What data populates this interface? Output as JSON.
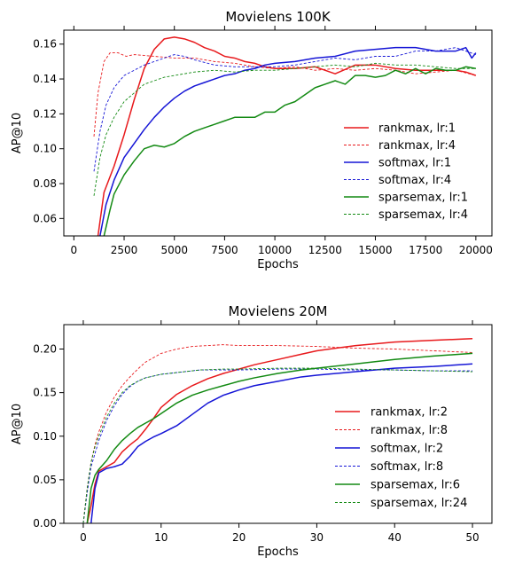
{
  "chart_data": [
    {
      "type": "line",
      "title": "Movielens 100K",
      "xlabel": "Epochs",
      "ylabel": "AP@10",
      "xlim": [
        -500,
        20800
      ],
      "ylim": [
        0.05,
        0.168
      ],
      "xticks": [
        0,
        2500,
        5000,
        7500,
        10000,
        12500,
        15000,
        17500,
        20000
      ],
      "xtick_labels": [
        "0",
        "2500",
        "5000",
        "7500",
        "10000",
        "12500",
        "15000",
        "17500",
        "20000"
      ],
      "yticks": [
        0.06,
        0.08,
        0.1,
        0.12,
        0.14,
        0.16
      ],
      "ytick_labels": [
        "0.06",
        "0.08",
        "0.10",
        "0.12",
        "0.14",
        "0.16"
      ],
      "grid": false,
      "legend_position": "right",
      "series": [
        {
          "name": "rankmax, lr:1",
          "color": "#e8191c",
          "style": "solid",
          "x": [
            1200,
            1500,
            2000,
            2500,
            3000,
            3500,
            4000,
            4500,
            5000,
            5500,
            6000,
            6500,
            7000,
            7500,
            8000,
            8500,
            9000,
            9500,
            10000,
            11000,
            12000,
            13000,
            14000,
            15000,
            16000,
            17000,
            18000,
            19000,
            19500,
            20000
          ],
          "y": [
            0.05,
            0.075,
            0.09,
            0.108,
            0.128,
            0.146,
            0.157,
            0.163,
            0.164,
            0.163,
            0.161,
            0.158,
            0.156,
            0.153,
            0.152,
            0.15,
            0.149,
            0.147,
            0.146,
            0.146,
            0.147,
            0.143,
            0.148,
            0.148,
            0.146,
            0.145,
            0.145,
            0.145,
            0.144,
            0.142
          ]
        },
        {
          "name": "rankmax, lr:4",
          "color": "#e8191c",
          "style": "dashed",
          "x": [
            1000,
            1200,
            1500,
            1800,
            2200,
            2600,
            3000,
            4000,
            5000,
            6000,
            7000,
            8000,
            9000,
            10000,
            11000,
            12000,
            13000,
            14000,
            15000,
            16000,
            17000,
            18000,
            19000,
            20000
          ],
          "y": [
            0.107,
            0.132,
            0.15,
            0.155,
            0.155,
            0.153,
            0.154,
            0.153,
            0.152,
            0.152,
            0.15,
            0.149,
            0.147,
            0.146,
            0.147,
            0.145,
            0.146,
            0.145,
            0.146,
            0.145,
            0.143,
            0.144,
            0.145,
            0.142
          ]
        },
        {
          "name": "softmax, lr:1",
          "color": "#1515d6",
          "style": "solid",
          "x": [
            1300,
            1600,
            2000,
            2500,
            3000,
            3500,
            4000,
            4500,
            5000,
            5500,
            6000,
            6500,
            7000,
            7500,
            8000,
            8500,
            9000,
            9500,
            10000,
            11000,
            12000,
            13000,
            14000,
            15000,
            16000,
            17000,
            18000,
            19000,
            19500,
            19800,
            20000
          ],
          "y": [
            0.05,
            0.068,
            0.082,
            0.095,
            0.103,
            0.111,
            0.118,
            0.124,
            0.129,
            0.133,
            0.136,
            0.138,
            0.14,
            0.142,
            0.143,
            0.145,
            0.146,
            0.148,
            0.149,
            0.15,
            0.152,
            0.153,
            0.156,
            0.157,
            0.158,
            0.158,
            0.156,
            0.156,
            0.158,
            0.152,
            0.155
          ]
        },
        {
          "name": "softmax, lr:4",
          "color": "#1515d6",
          "style": "dashed",
          "x": [
            1000,
            1300,
            1600,
            2000,
            2500,
            3000,
            3500,
            4000,
            4500,
            5000,
            5500,
            6000,
            7000,
            8000,
            9000,
            10000,
            11000,
            12000,
            13000,
            14000,
            15000,
            16000,
            17000,
            18000,
            19000,
            20000
          ],
          "y": [
            0.087,
            0.11,
            0.125,
            0.135,
            0.142,
            0.145,
            0.148,
            0.15,
            0.152,
            0.154,
            0.153,
            0.151,
            0.148,
            0.147,
            0.147,
            0.147,
            0.148,
            0.15,
            0.152,
            0.151,
            0.153,
            0.153,
            0.156,
            0.156,
            0.158,
            0.154
          ]
        },
        {
          "name": "sparsemax, lr:1",
          "color": "#138a13",
          "style": "solid",
          "x": [
            1500,
            1800,
            2000,
            2500,
            3000,
            3500,
            4000,
            4500,
            5000,
            5500,
            6000,
            6500,
            7000,
            7500,
            8000,
            8500,
            9000,
            9500,
            10000,
            10500,
            11000,
            11500,
            12000,
            12500,
            13000,
            13500,
            14000,
            14500,
            15000,
            15500,
            16000,
            16500,
            17000,
            17500,
            18000,
            18500,
            19000,
            19500,
            20000
          ],
          "y": [
            0.05,
            0.065,
            0.074,
            0.085,
            0.093,
            0.1,
            0.102,
            0.101,
            0.103,
            0.107,
            0.11,
            0.112,
            0.114,
            0.116,
            0.118,
            0.118,
            0.118,
            0.121,
            0.121,
            0.125,
            0.127,
            0.131,
            0.135,
            0.137,
            0.139,
            0.137,
            0.142,
            0.142,
            0.141,
            0.142,
            0.145,
            0.143,
            0.146,
            0.143,
            0.146,
            0.145,
            0.145,
            0.147,
            0.146
          ]
        },
        {
          "name": "sparsemax, lr:4",
          "color": "#138a13",
          "style": "dashed",
          "x": [
            1000,
            1300,
            1600,
            2000,
            2500,
            3000,
            3500,
            4000,
            4500,
            5000,
            6000,
            7000,
            8000,
            9000,
            10000,
            11000,
            12000,
            13000,
            14000,
            15000,
            16000,
            17000,
            18000,
            19000,
            20000
          ],
          "y": [
            0.073,
            0.095,
            0.108,
            0.118,
            0.127,
            0.132,
            0.137,
            0.139,
            0.141,
            0.142,
            0.144,
            0.145,
            0.144,
            0.145,
            0.145,
            0.146,
            0.147,
            0.148,
            0.147,
            0.149,
            0.148,
            0.148,
            0.147,
            0.146,
            0.146
          ]
        }
      ]
    },
    {
      "type": "line",
      "title": "Movielens 20M",
      "xlabel": "Epochs",
      "ylabel": "AP@10",
      "xlim": [
        -2.5,
        52.5
      ],
      "ylim": [
        0,
        0.228
      ],
      "xticks": [
        0,
        10,
        20,
        30,
        40,
        50
      ],
      "xtick_labels": [
        "0",
        "10",
        "20",
        "30",
        "40",
        "50"
      ],
      "yticks": [
        0,
        0.05,
        0.1,
        0.15,
        0.2
      ],
      "ytick_labels": [
        "0.00",
        "0.05",
        "0.10",
        "0.15",
        "0.20"
      ],
      "grid": false,
      "legend_position": "right",
      "series": [
        {
          "name": "rankmax, lr:2",
          "color": "#e8191c",
          "style": "solid",
          "x": [
            0.5,
            1,
            1.5,
            2,
            3,
            4,
            5,
            6,
            7,
            8,
            9,
            10,
            12,
            14,
            16,
            18,
            20,
            22,
            25,
            28,
            30,
            35,
            40,
            45,
            50
          ],
          "y": [
            0,
            0.02,
            0.045,
            0.06,
            0.065,
            0.07,
            0.082,
            0.09,
            0.097,
            0.108,
            0.12,
            0.133,
            0.148,
            0.158,
            0.166,
            0.172,
            0.177,
            0.182,
            0.188,
            0.194,
            0.198,
            0.204,
            0.208,
            0.21,
            0.212
          ]
        },
        {
          "name": "rankmax, lr:8",
          "color": "#e8191c",
          "style": "dashed",
          "x": [
            0,
            0.5,
            1,
            1.5,
            2,
            3,
            4,
            5,
            6,
            7,
            8,
            9,
            10,
            12,
            14,
            16,
            18,
            20,
            25,
            30,
            35,
            40,
            45,
            50
          ],
          "y": [
            0,
            0.04,
            0.07,
            0.09,
            0.105,
            0.128,
            0.145,
            0.158,
            0.168,
            0.177,
            0.185,
            0.19,
            0.195,
            0.2,
            0.203,
            0.204,
            0.205,
            0.204,
            0.204,
            0.203,
            0.201,
            0.2,
            0.198,
            0.196
          ]
        },
        {
          "name": "softmax, lr:2",
          "color": "#1515d6",
          "style": "solid",
          "x": [
            1,
            1.5,
            2,
            3,
            4,
            5,
            6,
            7,
            8,
            9,
            10,
            12,
            14,
            16,
            18,
            20,
            22,
            25,
            28,
            30,
            35,
            40,
            45,
            50
          ],
          "y": [
            0,
            0.04,
            0.058,
            0.063,
            0.065,
            0.068,
            0.077,
            0.088,
            0.094,
            0.099,
            0.103,
            0.112,
            0.125,
            0.138,
            0.147,
            0.153,
            0.158,
            0.163,
            0.168,
            0.17,
            0.174,
            0.178,
            0.18,
            0.183
          ]
        },
        {
          "name": "softmax, lr:8",
          "color": "#1515d6",
          "style": "dashed",
          "x": [
            0,
            0.5,
            1,
            1.5,
            2,
            3,
            4,
            5,
            6,
            7,
            8,
            10,
            12,
            15,
            18,
            20,
            25,
            30,
            35,
            40,
            45,
            50
          ],
          "y": [
            0,
            0.035,
            0.065,
            0.08,
            0.095,
            0.118,
            0.135,
            0.148,
            0.157,
            0.163,
            0.167,
            0.171,
            0.173,
            0.176,
            0.176,
            0.176,
            0.177,
            0.177,
            0.176,
            0.176,
            0.175,
            0.175
          ]
        },
        {
          "name": "sparsemax, lr:6",
          "color": "#138a13",
          "style": "solid",
          "x": [
            0.5,
            1,
            1.5,
            2,
            3,
            4,
            5,
            6,
            7,
            8,
            9,
            10,
            12,
            14,
            16,
            18,
            20,
            22,
            25,
            28,
            30,
            35,
            40,
            45,
            50
          ],
          "y": [
            0,
            0.04,
            0.055,
            0.062,
            0.072,
            0.085,
            0.095,
            0.103,
            0.11,
            0.115,
            0.12,
            0.126,
            0.138,
            0.147,
            0.153,
            0.158,
            0.163,
            0.167,
            0.172,
            0.176,
            0.178,
            0.183,
            0.188,
            0.192,
            0.195
          ]
        },
        {
          "name": "sparsemax, lr:24",
          "color": "#138a13",
          "style": "dashed",
          "x": [
            0,
            0.5,
            1,
            1.5,
            2,
            3,
            4,
            5,
            6,
            7,
            8,
            10,
            12,
            15,
            18,
            20,
            25,
            30,
            35,
            40,
            45,
            50
          ],
          "y": [
            0,
            0.04,
            0.07,
            0.088,
            0.1,
            0.122,
            0.138,
            0.15,
            0.158,
            0.163,
            0.167,
            0.171,
            0.173,
            0.176,
            0.177,
            0.177,
            0.178,
            0.178,
            0.177,
            0.176,
            0.175,
            0.174
          ]
        }
      ]
    }
  ]
}
